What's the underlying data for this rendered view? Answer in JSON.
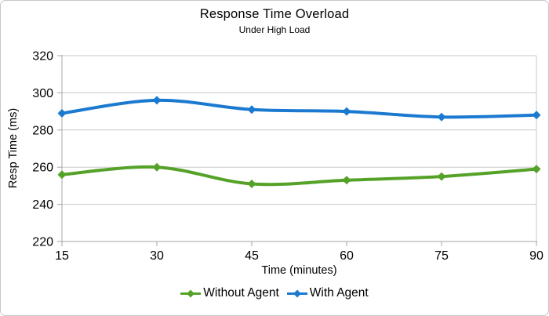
{
  "window": {
    "background": "#ffffff",
    "border_color": "#c6c6c6"
  },
  "chart_data": {
    "type": "line",
    "title": "Response Time Overload",
    "subtitle": "Under High Load",
    "xlabel": "Time (minutes)",
    "ylabel": "Resp Time (ms)",
    "x": [
      15,
      30,
      45,
      60,
      75,
      90
    ],
    "x_tick_labels": [
      "15",
      "30",
      "45",
      "60",
      "75",
      "90"
    ],
    "y_ticks": [
      220,
      240,
      260,
      280,
      300,
      320
    ],
    "xlim": [
      15,
      90
    ],
    "ylim": [
      220,
      320
    ],
    "grid": "horizontal-only",
    "legend_position": "bottom-center",
    "marker": "diamond",
    "line_style": "smoothed",
    "colors": {
      "gridline": "#c9c9c9",
      "axis": "#a6a6a6",
      "text": "#000000"
    },
    "series": [
      {
        "name": "Without Agent",
        "color": "#55A228",
        "values": [
          256,
          260,
          251,
          253,
          255,
          259
        ]
      },
      {
        "name": "With Agent",
        "color": "#1B7AD0",
        "values": [
          289,
          296,
          291,
          290,
          287,
          288
        ]
      }
    ]
  }
}
